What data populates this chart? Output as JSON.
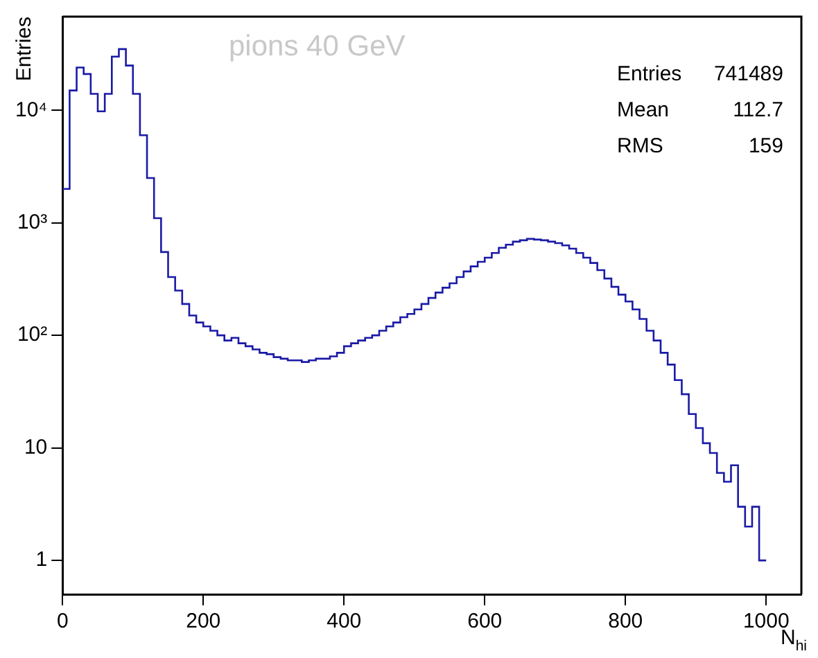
{
  "chart_data": {
    "type": "histogram",
    "title": "pions 40 GeV",
    "xlabel": "N$_{hi}$",
    "ylabel": "Entries",
    "annotations": [
      "Entries 741489",
      "Mean 112.7",
      "RMS 159"
    ],
    "bins": [
      0,
      10,
      20,
      30,
      40,
      50,
      60,
      70,
      80,
      90,
      100,
      110,
      120,
      130,
      140,
      150,
      160,
      170,
      180,
      190,
      200,
      210,
      220,
      230,
      240,
      250,
      260,
      270,
      280,
      290,
      300,
      310,
      320,
      330,
      340,
      350,
      360,
      370,
      380,
      390,
      400,
      410,
      420,
      430,
      440,
      450,
      460,
      470,
      480,
      490,
      500,
      510,
      520,
      530,
      540,
      550,
      560,
      570,
      580,
      590,
      600,
      610,
      620,
      630,
      640,
      650,
      660,
      670,
      680,
      690,
      700,
      710,
      720,
      730,
      740,
      750,
      760,
      770,
      780,
      790,
      800,
      810,
      820,
      830,
      840,
      850,
      860,
      870,
      880,
      890,
      900,
      910,
      920,
      930,
      940,
      950,
      960,
      970,
      980,
      990,
      1000
    ],
    "values": [
      2000,
      15000,
      24000,
      21000,
      14000,
      9800,
      14000,
      30000,
      35000,
      25000,
      14000,
      6000,
      2500,
      1100,
      550,
      330,
      250,
      190,
      150,
      130,
      120,
      110,
      100,
      90,
      95,
      85,
      80,
      75,
      70,
      68,
      64,
      62,
      60,
      60,
      58,
      60,
      62,
      62,
      65,
      70,
      80,
      85,
      90,
      95,
      100,
      110,
      120,
      130,
      145,
      155,
      170,
      190,
      215,
      240,
      265,
      290,
      330,
      370,
      410,
      450,
      490,
      540,
      600,
      640,
      680,
      700,
      720,
      710,
      700,
      680,
      660,
      630,
      590,
      540,
      490,
      440,
      380,
      320,
      270,
      230,
      200,
      170,
      140,
      110,
      90,
      70,
      55,
      40,
      30,
      20,
      15,
      11,
      9,
      6,
      5,
      7,
      3,
      2,
      3,
      1
    ],
    "color": "#1a1aa6",
    "log": true,
    "xlim": [
      0,
      1050
    ],
    "ylim": [
      0.5,
      68000
    ],
    "xticks": [
      0,
      200,
      400,
      600,
      800,
      1000
    ],
    "yticks": [
      1,
      10,
      {
        "value": 100,
        "label": "10²"
      },
      {
        "value": 1000,
        "label": "10³"
      },
      {
        "value": 10000,
        "label": "10⁴"
      }
    ],
    "grid": false,
    "legend": false
  }
}
